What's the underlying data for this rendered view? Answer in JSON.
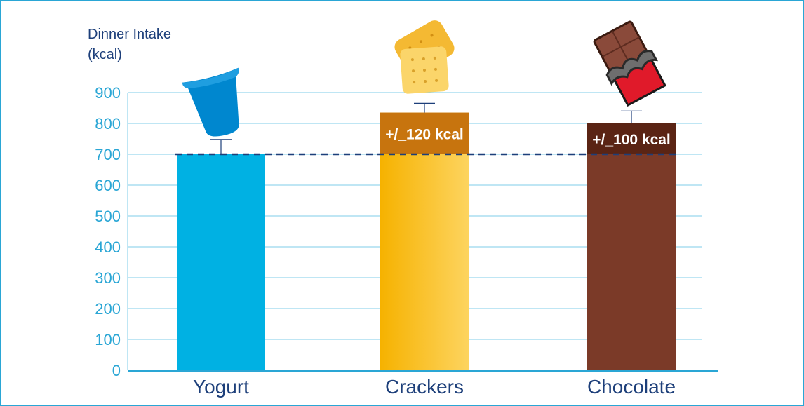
{
  "chart_data": {
    "type": "bar",
    "title": "",
    "ylabel_lines": [
      "Dinner Intake",
      "(kcal)"
    ],
    "xlabel": "",
    "categories": [
      "Yogurt",
      "Crackers",
      "Chocolate"
    ],
    "values": [
      700,
      835,
      800
    ],
    "error_bars": [
      48,
      30,
      40
    ],
    "ylim": [
      0,
      900
    ],
    "yticks": [
      "0",
      "100",
      "200",
      "300",
      "400",
      "500",
      "600",
      "700",
      "800",
      "900"
    ],
    "reference_line": {
      "value": 700,
      "style": "dashed"
    },
    "annotations": [
      {
        "category": "Crackers",
        "text": "+/_120 kcal"
      },
      {
        "category": "Chocolate",
        "text": "+/_100 kcal"
      }
    ],
    "grid": true,
    "legend": "none",
    "colors": {
      "Yogurt": "#00b1e3",
      "Crackers": "#f7b500",
      "Chocolate": "#7b3a28",
      "crackers_band": "#c7740e",
      "chocolate_band": "#5a2414",
      "axis": "#2aa6d5",
      "grid": "#7fcde9",
      "reference_line": "#1d3f7a",
      "error_bar": "#1d3f7a"
    },
    "icons": [
      "yogurt-cup-icon",
      "cracker-icon",
      "chocolate-bar-icon"
    ]
  }
}
